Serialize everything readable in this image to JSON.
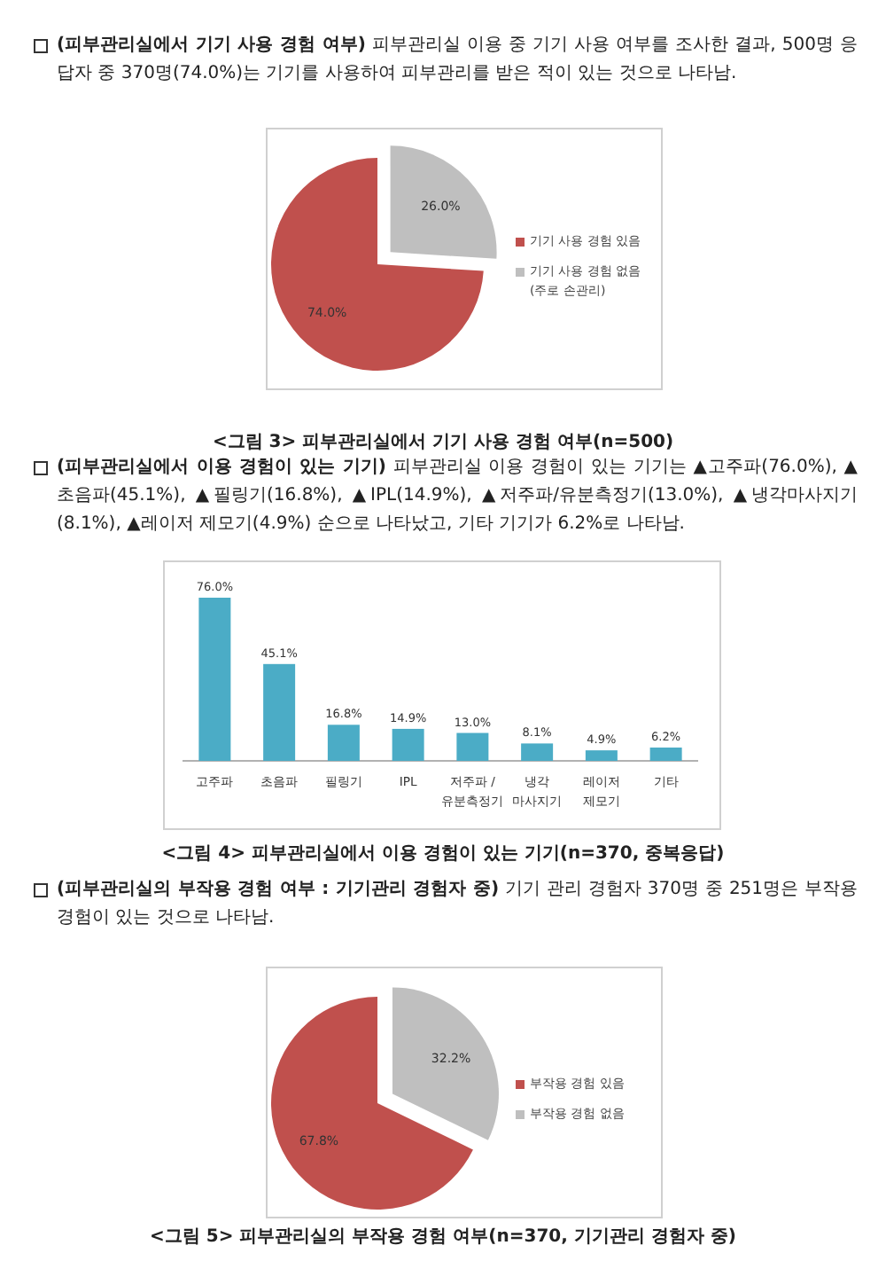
{
  "chart_data": [
    {
      "type": "pie",
      "title": "<그림 3> 피부관리실에서 기기 사용 경험 여부(n=500)",
      "annotations": [
        "**(피부관리실에서 기기 사용 경험 여부)** 피부관리실 이용 중 기기 사용 여부를 조사한 결과, 500명 응답자 중 370명(74.0%)는 기기를 사용하여 피부관리를 받은 적이 있는 것으로 나타남."
      ],
      "categories": [
        "기기 사용 경험 있음",
        "기기 사용 경험 없음(주로 손관리)"
      ],
      "values": [
        74.0,
        26.0
      ],
      "value_labels": [
        "74.0%",
        "26.0%"
      ],
      "colors": [
        "#c0504d",
        "#bfbfbf"
      ],
      "legend": "right"
    },
    {
      "type": "bar",
      "title": "<그림 4> 피부관리실에서 이용 경험이 있는 기기(n=370, 중복응답)",
      "annotations": [
        "**(피부관리실에서 이용 경험이 있는 기기)** 피부관리실 이용 경험이 있는 기기는 ▲고주파(76.0%), ▲초음파(45.1%), ▲필링기(16.8%), ▲IPL(14.9%), ▲저주파/유분측정기(13.0%), ▲냉각마사지기 (8.1%), ▲레이저 제모기(4.9%) 순으로 나타났고, 기타 기기가 6.2%로 나타남."
      ],
      "categories": [
        "고주파",
        "초음파",
        "필링기",
        "IPL",
        "저주파 / 유분측정기",
        "냉각 마사지기",
        "레이저 제모기",
        "기타"
      ],
      "values": [
        76.0,
        45.1,
        16.8,
        14.9,
        13.0,
        8.1,
        4.9,
        6.2
      ],
      "value_labels": [
        "76.0%",
        "45.1%",
        "16.8%",
        "14.9%",
        "13.0%",
        "8.1%",
        "4.9%",
        "6.2%"
      ],
      "color": "#4bacc6"
    },
    {
      "type": "pie",
      "title": "<그림 5> 피부관리실의 부작용 경험 여부(n=370, 기기관리 경험자 중)",
      "annotations": [
        "**(피부관리실의 부작용 경험 여부 : 기기관리 경험자 중)** 기기 관리 경험자 370명 중 251명은 부작용 경험이 있는 것으로 나타남."
      ],
      "categories": [
        "부작용 경험 있음",
        "부작용 경험 없음"
      ],
      "values": [
        67.8,
        32.2
      ],
      "value_labels": [
        "67.8%",
        "32.2%"
      ],
      "colors": [
        "#c0504d",
        "#bfbfbf"
      ],
      "legend": "right"
    }
  ]
}
